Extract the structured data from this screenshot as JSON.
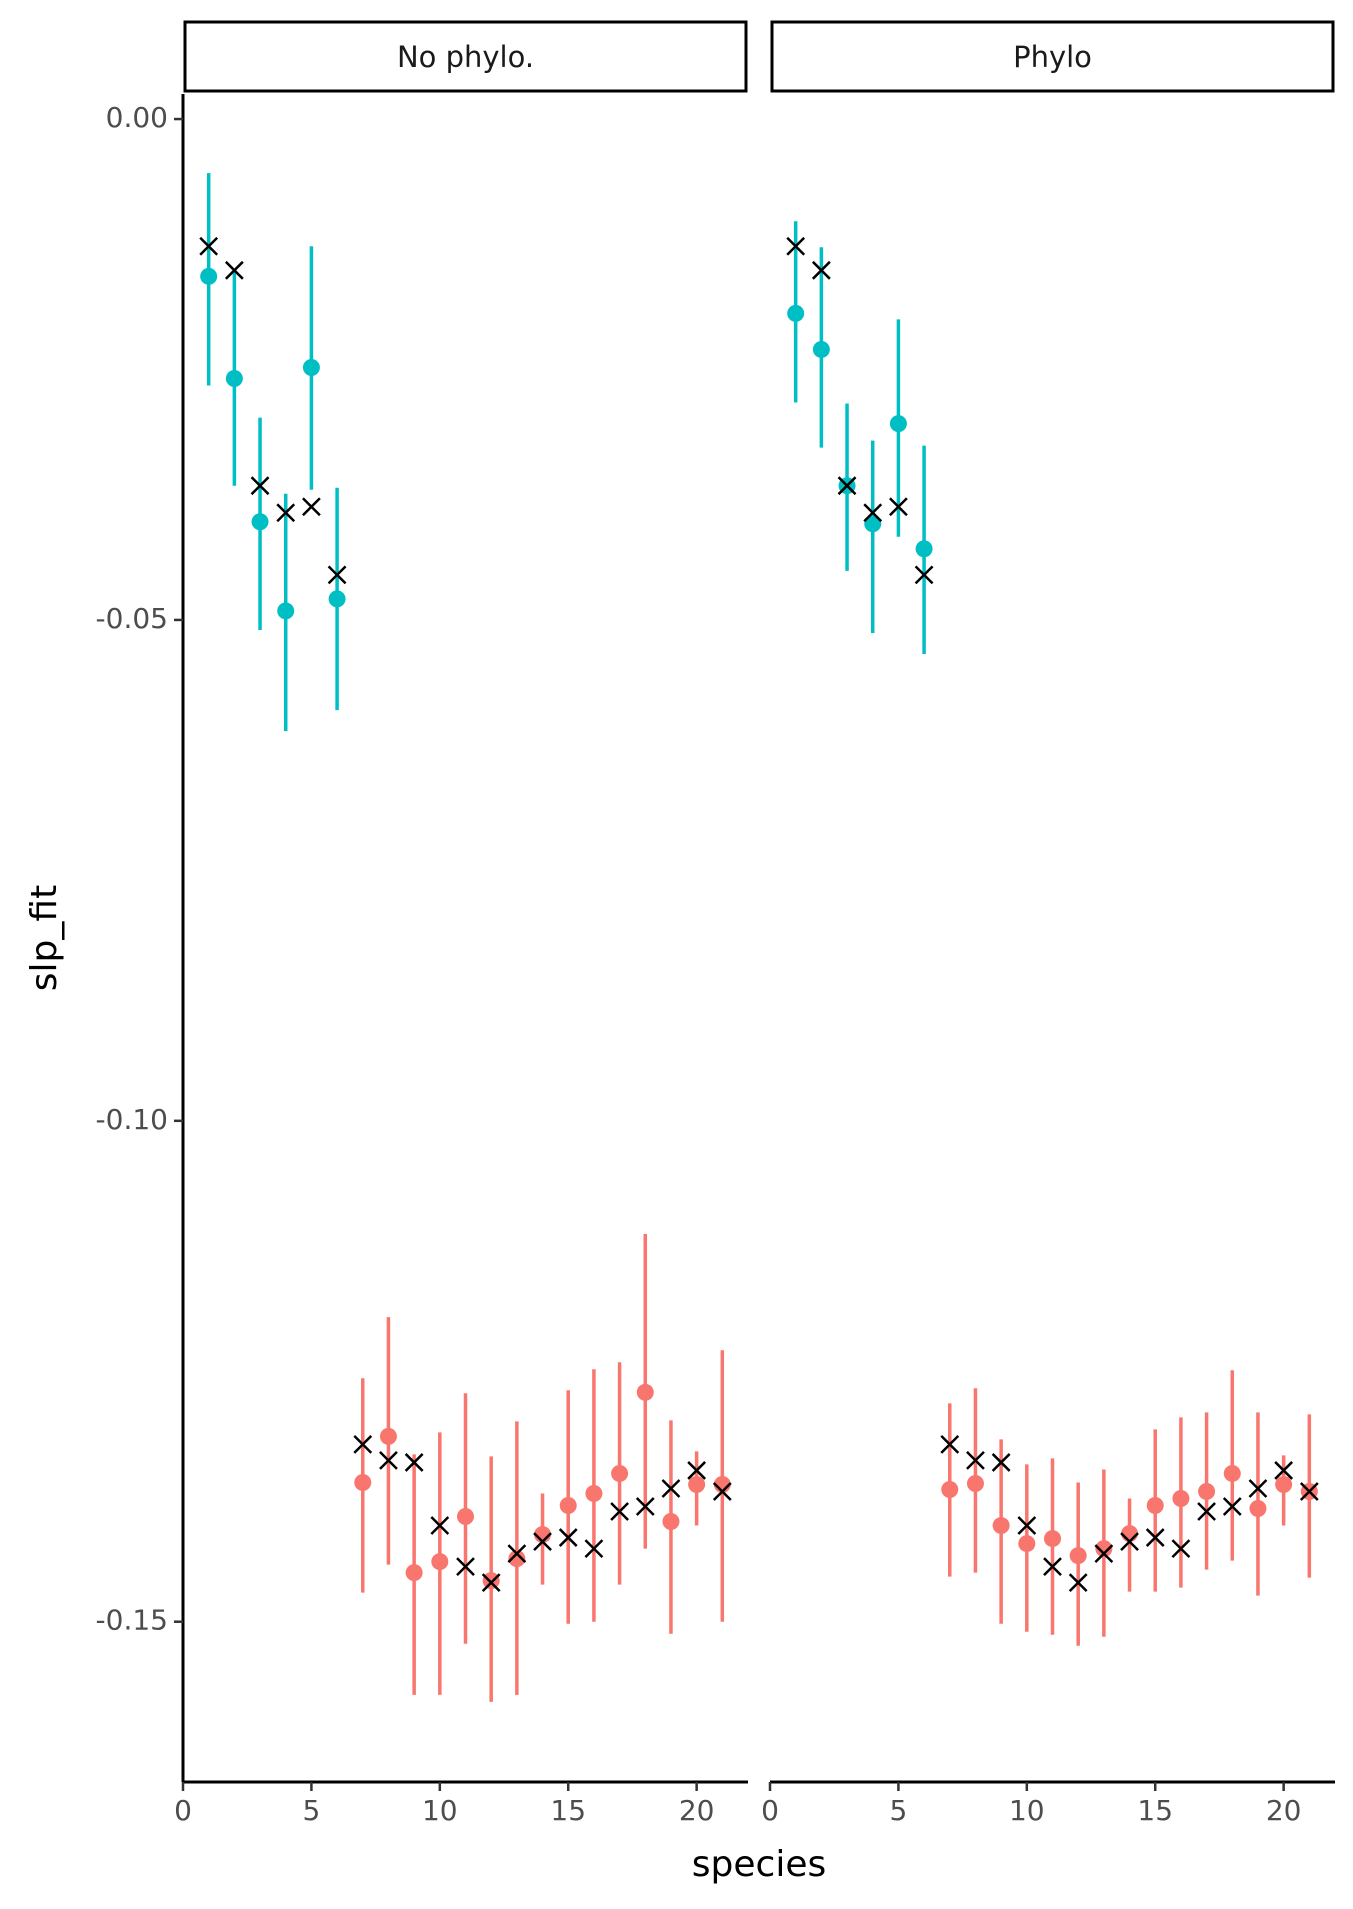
{
  "y_label": "slp_fit",
  "x_label": "species",
  "chart_data": [
    {
      "type": "scatter",
      "title": "No phylo.",
      "xlim": [
        0,
        22
      ],
      "xticks": [
        0,
        5,
        10,
        15,
        20
      ],
      "ylim": [
        -0.166,
        0.0025
      ],
      "yticks": [
        {
          "value": 0,
          "label": "0.00"
        },
        {
          "value": -0.05,
          "label": "-0.05"
        },
        {
          "value": -0.1,
          "label": "-0.10"
        },
        {
          "value": -0.15,
          "label": "-0.15"
        }
      ],
      "series": [
        {
          "marker": "point",
          "color": "#00bfc4",
          "x": [
            1,
            2,
            3,
            4,
            5,
            6
          ],
          "values": [
            -0.0157,
            -0.0259,
            -0.0402,
            -0.0491,
            -0.0248,
            -0.0479
          ],
          "lower": [
            -0.0266,
            -0.0366,
            -0.051,
            -0.0611,
            -0.037,
            -0.059
          ],
          "upper": [
            -0.0054,
            -0.0152,
            -0.0298,
            -0.0374,
            -0.0127,
            -0.0368
          ]
        },
        {
          "marker": "point",
          "color": "#f8766d",
          "x": [
            7,
            8,
            9,
            10,
            11,
            12,
            13,
            14,
            15,
            16,
            17,
            18,
            19,
            20,
            21
          ],
          "values": [
            -0.1361,
            -0.1315,
            -0.1451,
            -0.144,
            -0.1395,
            -0.1459,
            -0.1437,
            -0.1413,
            -0.1384,
            -0.1372,
            -0.1352,
            -0.1271,
            -0.14,
            -0.1363,
            -0.1363
          ],
          "lower": [
            -0.1471,
            -0.1443,
            -0.1573,
            -0.1573,
            -0.1522,
            -0.158,
            -0.1573,
            -0.1463,
            -0.1502,
            -0.15,
            -0.1463,
            -0.1427,
            -0.1512,
            -0.1404,
            -0.15
          ],
          "upper": [
            -0.1257,
            -0.1196,
            -0.1333,
            -0.1311,
            -0.1272,
            -0.1335,
            -0.13,
            -0.1372,
            -0.1269,
            -0.1248,
            -0.1241,
            -0.1113,
            -0.1299,
            -0.133,
            -0.1229
          ]
        },
        {
          "marker": "x",
          "color": "#000000",
          "x": [
            1,
            2,
            3,
            4,
            5,
            6,
            7,
            8,
            9,
            10,
            11,
            12,
            13,
            14,
            15,
            16,
            17,
            18,
            19,
            20,
            21
          ],
          "values": [
            -0.0127,
            -0.0151,
            -0.0366,
            -0.0393,
            -0.0387,
            -0.0455,
            -0.1323,
            -0.1339,
            -0.1341,
            -0.1404,
            -0.1445,
            -0.1461,
            -0.1432,
            -0.142,
            -0.1416,
            -0.1427,
            -0.139,
            -0.1385,
            -0.1367,
            -0.1349,
            -0.137
          ]
        }
      ]
    },
    {
      "type": "scatter",
      "title": "Phylo",
      "xlim": [
        0,
        22
      ],
      "xticks": [
        0,
        5,
        10,
        15,
        20
      ],
      "ylim": [
        -0.166,
        0.0025
      ],
      "series": [
        {
          "marker": "point",
          "color": "#00bfc4",
          "x": [
            1,
            2,
            3,
            4,
            5,
            6
          ],
          "values": [
            -0.0194,
            -0.023,
            -0.0366,
            -0.0404,
            -0.0304,
            -0.0429
          ],
          "lower": [
            -0.0283,
            -0.0328,
            -0.0451,
            -0.0513,
            -0.0417,
            -0.0534
          ],
          "upper": [
            -0.0102,
            -0.0128,
            -0.0284,
            -0.0321,
            -0.02,
            -0.0326
          ]
        },
        {
          "marker": "point",
          "color": "#f8766d",
          "x": [
            7,
            8,
            9,
            10,
            11,
            12,
            13,
            14,
            15,
            16,
            17,
            18,
            19,
            20,
            21
          ],
          "values": [
            -0.1368,
            -0.1362,
            -0.1404,
            -0.1422,
            -0.1417,
            -0.1434,
            -0.1427,
            -0.1412,
            -0.1384,
            -0.1377,
            -0.137,
            -0.1352,
            -0.1387,
            -0.1363,
            -0.137
          ],
          "lower": [
            -0.1455,
            -0.1451,
            -0.1502,
            -0.151,
            -0.1513,
            -0.1524,
            -0.1515,
            -0.147,
            -0.147,
            -0.1466,
            -0.1448,
            -0.1439,
            -0.1474,
            -0.1404,
            -0.1456
          ],
          "upper": [
            -0.1282,
            -0.1267,
            -0.1318,
            -0.1343,
            -0.1337,
            -0.1361,
            -0.1348,
            -0.1377,
            -0.1308,
            -0.1296,
            -0.1291,
            -0.1249,
            -0.1291,
            -0.1334,
            -0.1293
          ]
        },
        {
          "marker": "x",
          "color": "#000000",
          "x": [
            1,
            2,
            3,
            4,
            5,
            6,
            7,
            8,
            9,
            10,
            11,
            12,
            13,
            14,
            15,
            16,
            17,
            18,
            19,
            20,
            21
          ],
          "values": [
            -0.0127,
            -0.0151,
            -0.0366,
            -0.0393,
            -0.0387,
            -0.0455,
            -0.1323,
            -0.1339,
            -0.1341,
            -0.1404,
            -0.1445,
            -0.1461,
            -0.1432,
            -0.142,
            -0.1416,
            -0.1427,
            -0.139,
            -0.1385,
            -0.1367,
            -0.1349,
            -0.137
          ]
        }
      ]
    }
  ]
}
